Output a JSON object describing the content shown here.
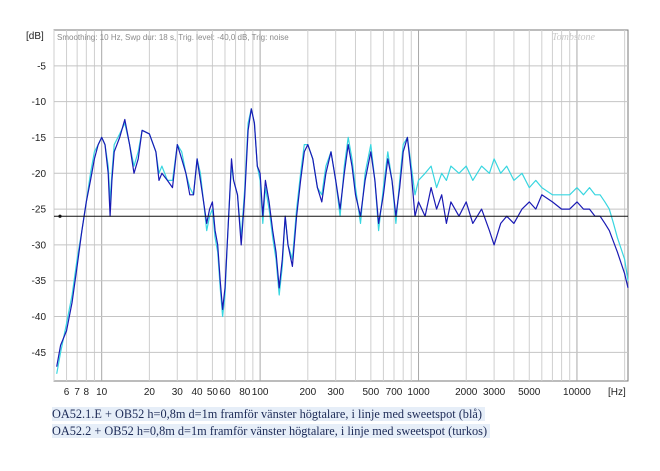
{
  "chart_data": {
    "type": "line",
    "y_unit_label": "[dB]",
    "x_unit_label": "[Hz]",
    "header_text": "Smoothing: 10 Hz, Swp dur: 18 s, Trig. level: -40,0 dB, Trig: noise",
    "brand": "Tombstone",
    "x_scale": "log",
    "xlim": [
      5,
      21000
    ],
    "ylim": [
      -49,
      0
    ],
    "y_ticks": [
      -5,
      -10,
      -15,
      -20,
      -25,
      -30,
      -35,
      -40,
      -45
    ],
    "x_ticks": [
      {
        "label": "6",
        "value": 6
      },
      {
        "label": "7",
        "value": 7
      },
      {
        "label": "8",
        "value": 8
      },
      {
        "label": "10",
        "value": 10
      },
      {
        "label": "20",
        "value": 20
      },
      {
        "label": "30",
        "value": 30
      },
      {
        "label": "40",
        "value": 40
      },
      {
        "label": "50",
        "value": 50
      },
      {
        "label": "60",
        "value": 60
      },
      {
        "label": "80",
        "value": 80
      },
      {
        "label": "100",
        "value": 100
      },
      {
        "label": "200",
        "value": 200
      },
      {
        "label": "300",
        "value": 300
      },
      {
        "label": "500",
        "value": 500
      },
      {
        "label": "700",
        "value": 700
      },
      {
        "label": "1000",
        "value": 1000
      },
      {
        "label": "2000",
        "value": 2000
      },
      {
        "label": "3000",
        "value": 3000
      },
      {
        "label": "5000",
        "value": 5000
      },
      {
        "label": "10000",
        "value": 10000
      }
    ],
    "reference_line": {
      "value": -26
    },
    "series": [
      {
        "name": "OA52.1.E + OB52 (blå)",
        "color": "#1a1ab4",
        "points": [
          [
            5.2,
            -47
          ],
          [
            5.5,
            -44
          ],
          [
            6,
            -42
          ],
          [
            6.5,
            -38
          ],
          [
            7,
            -33
          ],
          [
            7.5,
            -28
          ],
          [
            8,
            -24
          ],
          [
            8.5,
            -21
          ],
          [
            9,
            -18
          ],
          [
            9.5,
            -16
          ],
          [
            10,
            -15
          ],
          [
            10.5,
            -16
          ],
          [
            11,
            -20
          ],
          [
            11.3,
            -26
          ],
          [
            11.6,
            -21
          ],
          [
            12,
            -17
          ],
          [
            13,
            -15
          ],
          [
            14,
            -12.5
          ],
          [
            15,
            -16
          ],
          [
            16,
            -20
          ],
          [
            17,
            -18
          ],
          [
            18,
            -14
          ],
          [
            20,
            -14.5
          ],
          [
            22,
            -17
          ],
          [
            23,
            -21
          ],
          [
            24,
            -20
          ],
          [
            26,
            -21
          ],
          [
            28,
            -22
          ],
          [
            30,
            -16
          ],
          [
            32,
            -18
          ],
          [
            34,
            -20
          ],
          [
            36,
            -23
          ],
          [
            38,
            -23
          ],
          [
            40,
            -18
          ],
          [
            42,
            -21
          ],
          [
            44,
            -24
          ],
          [
            46,
            -27
          ],
          [
            48,
            -25
          ],
          [
            50,
            -24
          ],
          [
            52,
            -28
          ],
          [
            54,
            -30
          ],
          [
            56,
            -35
          ],
          [
            58,
            -39
          ],
          [
            60,
            -36
          ],
          [
            62,
            -30
          ],
          [
            64,
            -24
          ],
          [
            66,
            -18
          ],
          [
            68,
            -21
          ],
          [
            72,
            -23
          ],
          [
            76,
            -30
          ],
          [
            80,
            -23
          ],
          [
            84,
            -14
          ],
          [
            88,
            -11
          ],
          [
            92,
            -13
          ],
          [
            96,
            -19
          ],
          [
            100,
            -20
          ],
          [
            104,
            -26
          ],
          [
            108,
            -21
          ],
          [
            114,
            -24
          ],
          [
            120,
            -28
          ],
          [
            126,
            -31
          ],
          [
            132,
            -36
          ],
          [
            138,
            -32
          ],
          [
            144,
            -26
          ],
          [
            150,
            -30
          ],
          [
            160,
            -33
          ],
          [
            170,
            -26
          ],
          [
            180,
            -21
          ],
          [
            190,
            -17
          ],
          [
            200,
            -16
          ],
          [
            215,
            -18
          ],
          [
            230,
            -22
          ],
          [
            245,
            -24
          ],
          [
            260,
            -20
          ],
          [
            280,
            -17
          ],
          [
            300,
            -21
          ],
          [
            320,
            -25
          ],
          [
            340,
            -20
          ],
          [
            360,
            -16
          ],
          [
            380,
            -19
          ],
          [
            400,
            -23
          ],
          [
            430,
            -26
          ],
          [
            460,
            -21
          ],
          [
            500,
            -17
          ],
          [
            530,
            -21
          ],
          [
            560,
            -27
          ],
          [
            600,
            -23
          ],
          [
            640,
            -18
          ],
          [
            680,
            -21
          ],
          [
            720,
            -26
          ],
          [
            760,
            -22
          ],
          [
            800,
            -17
          ],
          [
            850,
            -15
          ],
          [
            900,
            -20
          ],
          [
            950,
            -26
          ],
          [
            1000,
            -24
          ],
          [
            1100,
            -26
          ],
          [
            1200,
            -22
          ],
          [
            1300,
            -25
          ],
          [
            1400,
            -23
          ],
          [
            1500,
            -27
          ],
          [
            1600,
            -24
          ],
          [
            1800,
            -26
          ],
          [
            2000,
            -24
          ],
          [
            2200,
            -27
          ],
          [
            2500,
            -25
          ],
          [
            2800,
            -28
          ],
          [
            3000,
            -30
          ],
          [
            3300,
            -27
          ],
          [
            3600,
            -26
          ],
          [
            4000,
            -27
          ],
          [
            4500,
            -25
          ],
          [
            5000,
            -24
          ],
          [
            5500,
            -25
          ],
          [
            6000,
            -23
          ],
          [
            7000,
            -24
          ],
          [
            8000,
            -25
          ],
          [
            9000,
            -25
          ],
          [
            10000,
            -24
          ],
          [
            11000,
            -25
          ],
          [
            12000,
            -25
          ],
          [
            13000,
            -26
          ],
          [
            14000,
            -26
          ],
          [
            15000,
            -27
          ],
          [
            16000,
            -28
          ],
          [
            18000,
            -31
          ],
          [
            20000,
            -34
          ],
          [
            21000,
            -36
          ]
        ]
      },
      {
        "name": "OA52.2 + OB52 (turkos)",
        "color": "#38d6e0",
        "points": [
          [
            5.2,
            -48
          ],
          [
            5.5,
            -45
          ],
          [
            6,
            -41
          ],
          [
            6.5,
            -37
          ],
          [
            7,
            -32
          ],
          [
            7.5,
            -28
          ],
          [
            8,
            -24
          ],
          [
            8.5,
            -20
          ],
          [
            9,
            -17
          ],
          [
            9.5,
            -16
          ],
          [
            10,
            -15
          ],
          [
            10.5,
            -16
          ],
          [
            11,
            -19
          ],
          [
            11.3,
            -24
          ],
          [
            11.6,
            -20
          ],
          [
            12,
            -16
          ],
          [
            13,
            -14.5
          ],
          [
            14,
            -13
          ],
          [
            15,
            -16
          ],
          [
            16,
            -19
          ],
          [
            17,
            -17
          ],
          [
            18,
            -14
          ],
          [
            20,
            -14.5
          ],
          [
            22,
            -17
          ],
          [
            23,
            -20
          ],
          [
            24,
            -19
          ],
          [
            26,
            -21
          ],
          [
            28,
            -21
          ],
          [
            30,
            -16
          ],
          [
            32,
            -17
          ],
          [
            34,
            -20
          ],
          [
            36,
            -22
          ],
          [
            38,
            -23
          ],
          [
            40,
            -18
          ],
          [
            42,
            -20
          ],
          [
            44,
            -24
          ],
          [
            46,
            -28
          ],
          [
            48,
            -26
          ],
          [
            50,
            -25
          ],
          [
            52,
            -29
          ],
          [
            54,
            -31
          ],
          [
            56,
            -36
          ],
          [
            58,
            -40
          ],
          [
            60,
            -37
          ],
          [
            62,
            -30
          ],
          [
            64,
            -24
          ],
          [
            66,
            -19
          ],
          [
            68,
            -21
          ],
          [
            72,
            -23
          ],
          [
            76,
            -29
          ],
          [
            80,
            -22
          ],
          [
            84,
            -13
          ],
          [
            88,
            -11
          ],
          [
            92,
            -13
          ],
          [
            96,
            -19
          ],
          [
            100,
            -21
          ],
          [
            104,
            -27
          ],
          [
            108,
            -22
          ],
          [
            114,
            -25
          ],
          [
            120,
            -29
          ],
          [
            126,
            -32
          ],
          [
            132,
            -37
          ],
          [
            138,
            -33
          ],
          [
            144,
            -26
          ],
          [
            150,
            -30
          ],
          [
            160,
            -32
          ],
          [
            170,
            -25
          ],
          [
            180,
            -20
          ],
          [
            190,
            -16
          ],
          [
            200,
            -16
          ],
          [
            215,
            -18
          ],
          [
            230,
            -22
          ],
          [
            245,
            -23
          ],
          [
            260,
            -19
          ],
          [
            280,
            -17
          ],
          [
            300,
            -21
          ],
          [
            320,
            -26
          ],
          [
            340,
            -19
          ],
          [
            360,
            -15
          ],
          [
            380,
            -18
          ],
          [
            400,
            -22
          ],
          [
            430,
            -27
          ],
          [
            460,
            -20
          ],
          [
            500,
            -16
          ],
          [
            530,
            -21
          ],
          [
            560,
            -28
          ],
          [
            600,
            -22
          ],
          [
            640,
            -17
          ],
          [
            680,
            -21
          ],
          [
            720,
            -27
          ],
          [
            760,
            -21
          ],
          [
            800,
            -16
          ],
          [
            850,
            -15
          ],
          [
            900,
            -19
          ],
          [
            950,
            -23
          ],
          [
            1000,
            -21
          ],
          [
            1100,
            -20
          ],
          [
            1200,
            -19
          ],
          [
            1300,
            -22
          ],
          [
            1400,
            -20
          ],
          [
            1500,
            -21
          ],
          [
            1600,
            -19
          ],
          [
            1800,
            -20
          ],
          [
            2000,
            -19
          ],
          [
            2200,
            -21
          ],
          [
            2500,
            -19
          ],
          [
            2800,
            -20
          ],
          [
            3000,
            -18
          ],
          [
            3300,
            -20
          ],
          [
            3600,
            -19
          ],
          [
            4000,
            -21
          ],
          [
            4500,
            -20
          ],
          [
            5000,
            -22
          ],
          [
            5500,
            -21
          ],
          [
            6000,
            -22
          ],
          [
            7000,
            -23
          ],
          [
            8000,
            -23
          ],
          [
            9000,
            -23
          ],
          [
            10000,
            -22
          ],
          [
            11000,
            -23
          ],
          [
            12000,
            -22
          ],
          [
            13000,
            -23
          ],
          [
            14000,
            -23
          ],
          [
            15000,
            -24
          ],
          [
            16000,
            -25
          ],
          [
            17000,
            -27
          ],
          [
            18000,
            -29
          ],
          [
            20000,
            -32
          ],
          [
            21000,
            -35
          ]
        ]
      }
    ]
  },
  "captions": [
    "OA52.1.E + OB52 h=0,8m  d=1m framför vänster högtalare, i linje med sweetspot (blå)",
    "OA52.2 + OB52 h=0,8m  d=1m framför vänster högtalare, i linje med sweetspot (turkos)"
  ]
}
